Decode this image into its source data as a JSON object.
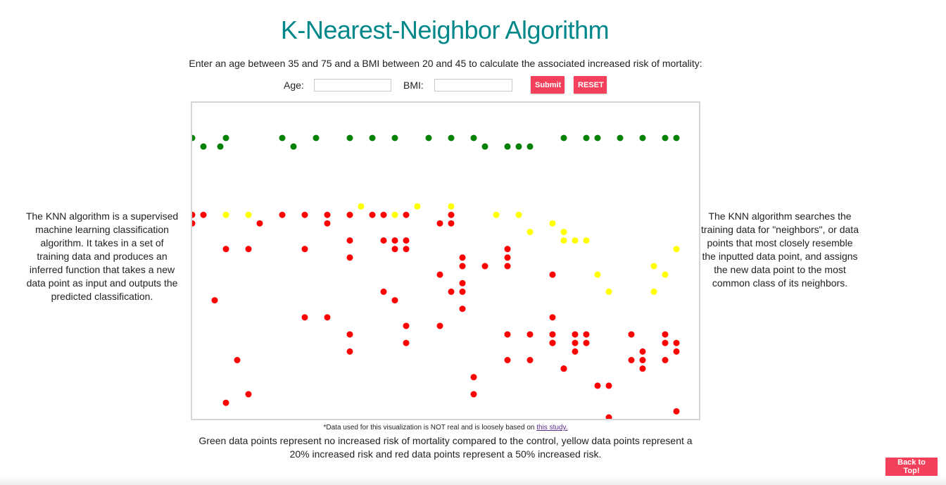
{
  "header": {
    "title": "K-Nearest-Neighbor Algorithm",
    "instructions": "Enter an age between 35 and 75 and a BMI between 20 and 45 to calculate the associated increased risk of mortality:"
  },
  "form": {
    "age_label": "Age:",
    "age_value": "",
    "bmi_label": "BMI:",
    "bmi_value": "",
    "submit_label": "Submit",
    "reset_label": "RESET"
  },
  "descriptions": {
    "left": "The KNN algorithm is a supervised machine learning classification algorithm. It takes in a set of training data and produces an inferred function that takes a new data point as input and outputs the predicted classification.",
    "right": "The KNN algorithm searches the training data for \"neighbors\", or data points that most closely resemble the inputted data point, and assigns the new data point to the most common class of its neighbors."
  },
  "footnote": {
    "prefix": "*Data used for this visualization is NOT real and is loosely based on ",
    "link_text": "this study."
  },
  "legend_text": "Green data points represent no increased risk of mortality compared to the control, yellow data points represent a 20% increased risk and red data points represent a 50% increased risk.",
  "back_to_top_label": "Back to Top!",
  "colors": {
    "accent": "#f4405a",
    "title": "#00878a",
    "no_risk": "#008000",
    "risk_20": "#ffff00",
    "risk_50": "#ff0000"
  },
  "chart_data": {
    "type": "scatter",
    "title": "",
    "xlabel": "",
    "ylabel": "",
    "xlim": [
      35,
      80
    ],
    "ylim": [
      8,
      45
    ],
    "grid": false,
    "series": [
      {
        "color": "#008000",
        "points": [
          [
            35,
            45
          ],
          [
            36,
            44
          ],
          [
            37.5,
            44
          ],
          [
            38,
            45
          ],
          [
            43,
            45
          ],
          [
            44,
            44
          ],
          [
            46,
            45
          ],
          [
            49,
            45
          ],
          [
            51,
            45
          ],
          [
            53,
            45
          ],
          [
            56,
            45
          ],
          [
            58,
            45
          ],
          [
            60,
            45
          ],
          [
            61,
            44
          ],
          [
            63,
            44
          ],
          [
            64,
            44
          ],
          [
            65,
            44
          ],
          [
            68,
            45
          ],
          [
            70,
            45
          ],
          [
            71,
            45
          ],
          [
            73,
            45
          ],
          [
            75,
            45
          ],
          [
            77,
            45
          ],
          [
            78,
            45
          ]
        ]
      },
      {
        "color": "#ffff00",
        "points": [
          [
            35,
            36
          ],
          [
            38,
            36
          ],
          [
            40,
            36
          ],
          [
            49,
            36
          ],
          [
            50,
            37
          ],
          [
            53,
            36
          ],
          [
            55,
            37
          ],
          [
            58,
            37
          ],
          [
            62,
            36
          ],
          [
            64,
            36
          ],
          [
            65,
            34
          ],
          [
            67,
            35
          ],
          [
            68,
            33
          ],
          [
            68,
            34
          ],
          [
            69,
            33
          ],
          [
            70,
            33
          ],
          [
            71,
            29
          ],
          [
            72,
            27
          ],
          [
            76,
            27
          ],
          [
            76,
            30
          ],
          [
            77,
            29
          ],
          [
            78,
            32
          ]
        ]
      },
      {
        "color": "#ff0000",
        "points": [
          [
            35,
            36
          ],
          [
            35,
            35
          ],
          [
            36,
            36
          ],
          [
            37,
            26
          ],
          [
            38,
            32
          ],
          [
            40,
            32
          ],
          [
            41,
            35
          ],
          [
            43,
            36
          ],
          [
            45,
            36
          ],
          [
            45,
            32
          ],
          [
            45,
            24
          ],
          [
            47,
            36
          ],
          [
            47,
            35
          ],
          [
            47,
            24
          ],
          [
            49,
            36
          ],
          [
            49,
            33
          ],
          [
            49,
            31
          ],
          [
            49,
            22
          ],
          [
            49,
            20
          ],
          [
            51,
            36
          ],
          [
            52,
            36
          ],
          [
            52,
            33
          ],
          [
            52,
            27
          ],
          [
            53,
            33
          ],
          [
            53,
            32
          ],
          [
            53,
            26
          ],
          [
            54,
            36
          ],
          [
            54,
            33
          ],
          [
            54,
            32
          ],
          [
            54,
            23
          ],
          [
            54,
            21
          ],
          [
            57,
            35
          ],
          [
            57,
            29
          ],
          [
            57,
            23
          ],
          [
            58,
            36
          ],
          [
            58,
            35
          ],
          [
            58,
            27
          ],
          [
            59,
            31
          ],
          [
            59,
            30
          ],
          [
            59,
            28
          ],
          [
            59,
            27
          ],
          [
            59,
            25
          ],
          [
            60,
            17
          ],
          [
            60,
            15
          ],
          [
            61,
            30
          ],
          [
            63,
            32
          ],
          [
            63,
            31
          ],
          [
            63,
            30
          ],
          [
            63,
            22
          ],
          [
            63,
            19
          ],
          [
            65,
            22
          ],
          [
            65,
            19
          ],
          [
            67,
            29
          ],
          [
            67,
            22
          ],
          [
            67,
            21
          ],
          [
            67,
            21
          ],
          [
            67,
            24
          ],
          [
            68,
            18
          ],
          [
            68,
            18
          ],
          [
            69,
            20
          ],
          [
            69,
            21
          ],
          [
            69,
            22
          ],
          [
            70,
            22
          ],
          [
            70,
            21
          ],
          [
            71,
            16
          ],
          [
            72,
            16
          ],
          [
            72,
            8
          ],
          [
            74,
            22
          ],
          [
            74,
            19
          ],
          [
            75,
            18
          ],
          [
            75,
            19
          ],
          [
            75,
            20
          ],
          [
            77,
            22
          ],
          [
            77,
            21
          ],
          [
            77,
            19
          ],
          [
            78,
            20
          ],
          [
            78,
            21
          ],
          [
            78,
            13
          ],
          [
            39,
            19
          ],
          [
            40,
            15
          ],
          [
            38,
            14
          ]
        ]
      }
    ]
  }
}
